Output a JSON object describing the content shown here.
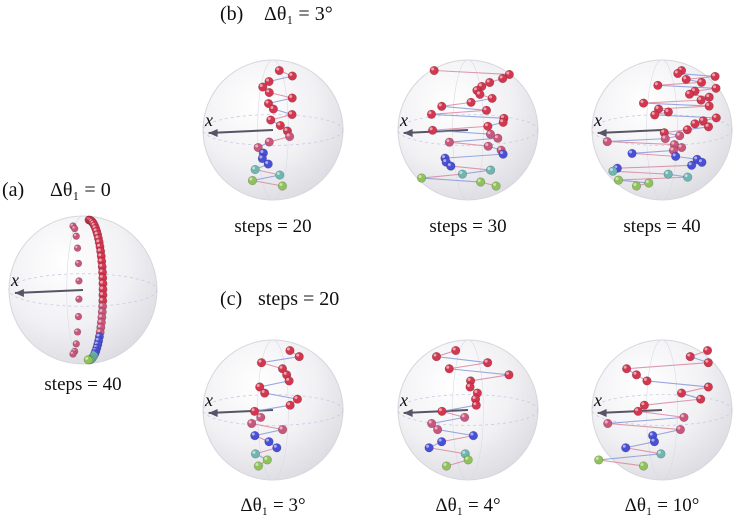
{
  "panels": {
    "a": {
      "label": "(a)",
      "param": "Δθ₁ = 0",
      "sphere_caption": "steps = 40",
      "axis_label": "x"
    },
    "b": {
      "label": "(b)",
      "param": "Δθ₁ = 3°",
      "sphere_captions": [
        "steps = 20",
        "steps = 30",
        "steps = 40"
      ],
      "axis_label": "x"
    },
    "c": {
      "label": "(c)",
      "param": "steps = 20",
      "sphere_captions": [
        "Δθ₁ = 3°",
        "Δθ₁ = 4°",
        "Δθ₁ = 10°"
      ],
      "axis_label": "x"
    }
  },
  "colors": {
    "red": "#d4364f",
    "pink": "#c9577c",
    "blue": "#4a4fd8",
    "green": "#8fc35a",
    "teal": "#6fb6b0",
    "sphere_fill": "#efeff2",
    "axis_arrow": "#555566"
  }
}
